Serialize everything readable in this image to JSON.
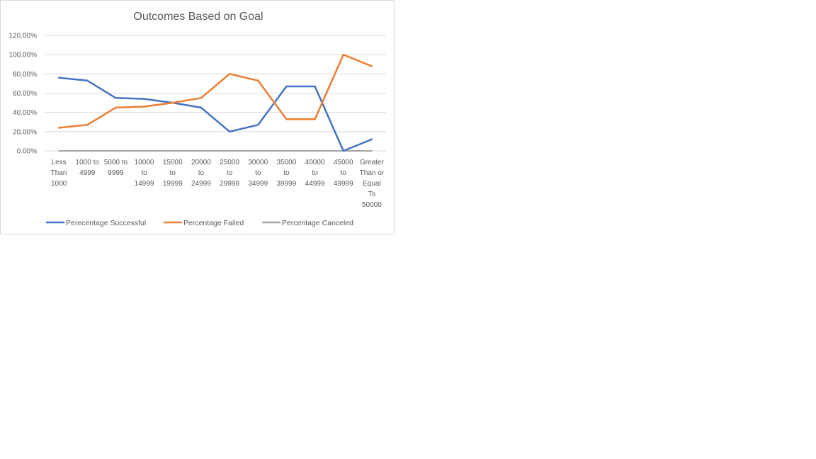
{
  "chart_data": {
    "type": "line",
    "title": "Outcomes Based on Goal",
    "xlabel": "",
    "ylabel": "",
    "categories": [
      "Less Than 1000",
      "1000 to 4999",
      "5000 to 9999",
      "10000 to 14999",
      "15000 to 19999",
      "20000 to 24999",
      "25000 to 29999",
      "30000 to 34999",
      "35000 to 39999",
      "40000 to 44999",
      "45000 to 49999",
      "Greater Than or Equal To 50000"
    ],
    "category_label_lines": [
      [
        "Less",
        "Than",
        "1000"
      ],
      [
        "1000 to",
        "4999"
      ],
      [
        "5000 to",
        "9999"
      ],
      [
        "10000",
        "to",
        "14999"
      ],
      [
        "15000",
        "to",
        "19999"
      ],
      [
        "20000",
        "to",
        "24999"
      ],
      [
        "25000",
        "to",
        "29999"
      ],
      [
        "30000",
        "to",
        "34999"
      ],
      [
        "35000",
        "to",
        "39999"
      ],
      [
        "40000",
        "to",
        "44999"
      ],
      [
        "45000",
        "to",
        "49999"
      ],
      [
        "Greater",
        "Than or",
        "Equal",
        "To",
        "50000"
      ]
    ],
    "series": [
      {
        "name": "Perecentage Successful",
        "color": "#4472c4",
        "values": [
          0.76,
          0.73,
          0.55,
          0.54,
          0.5,
          0.45,
          0.2,
          0.27,
          0.67,
          0.67,
          0.0,
          0.12
        ]
      },
      {
        "name": "Percentage Failed",
        "color": "#ed7d31",
        "values": [
          0.24,
          0.27,
          0.45,
          0.46,
          0.5,
          0.55,
          0.8,
          0.73,
          0.33,
          0.33,
          1.0,
          0.88
        ]
      },
      {
        "name": "Percentage Canceled",
        "color": "#a5a5a5",
        "values": [
          0,
          0,
          0,
          0,
          0,
          0,
          0,
          0,
          0,
          0,
          0,
          0
        ]
      }
    ],
    "ylim": [
      0,
      1.2
    ],
    "y_ticks": [
      "0.00%",
      "20.00%",
      "40.00%",
      "60.00%",
      "80.00%",
      "100.00%",
      "120.00%"
    ],
    "y_tick_values": [
      0,
      0.2,
      0.4,
      0.6,
      0.8,
      1.0,
      1.2
    ],
    "grid": true,
    "legend_position": "bottom"
  }
}
